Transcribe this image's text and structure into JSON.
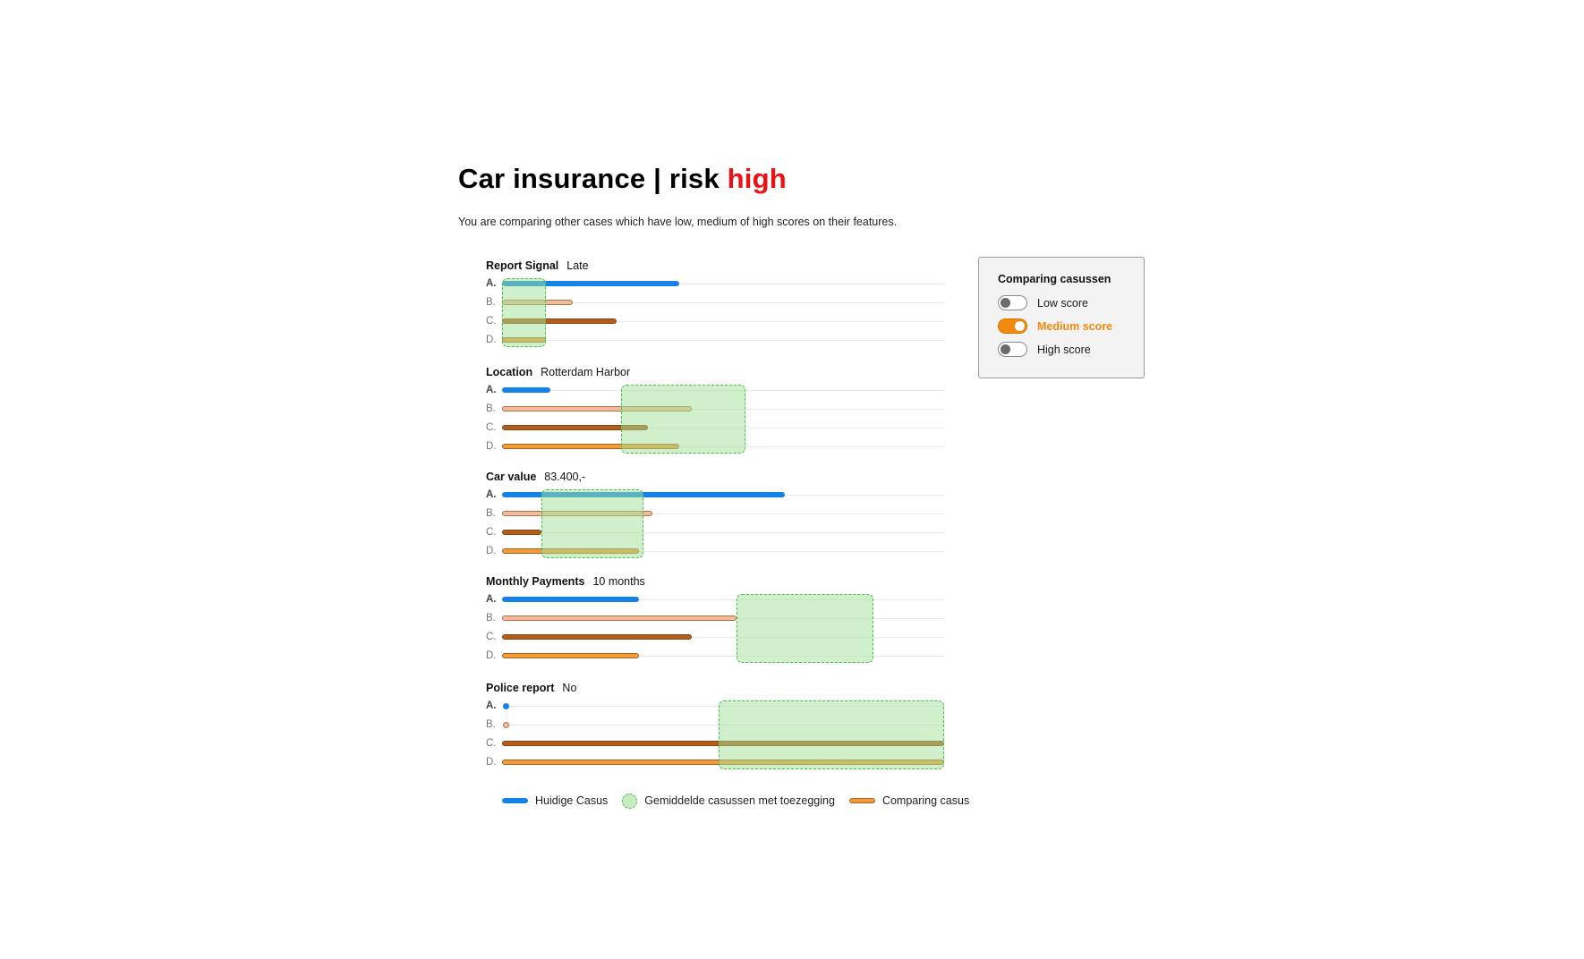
{
  "header": {
    "title_prefix": "Car insurance | risk",
    "risk_level": "high",
    "risk_color": "#ee1111",
    "subtitle": "You are comparing other cases which have low, medium of high scores on their features."
  },
  "colors": {
    "current_case": "#1582e7",
    "comparing_light": "#f3bc97",
    "comparing_dark": "#b35d1b",
    "comparing_medium": "#f39a39",
    "average_zone": "#a0e196",
    "toggle_on": "#f38a0e"
  },
  "row_labels": [
    "A.",
    "B.",
    "C.",
    "D."
  ],
  "features": [
    {
      "name": "Report Signal",
      "value": "Late",
      "values": [
        40,
        16,
        26,
        10
      ],
      "avg_range": [
        0,
        10
      ]
    },
    {
      "name": "Location",
      "value": "Rotterdam Harbor",
      "values": [
        11,
        43,
        33,
        40
      ],
      "avg_range": [
        27,
        55
      ]
    },
    {
      "name": "Car value",
      "value": "83.400,-",
      "values": [
        64,
        34,
        9,
        31
      ],
      "avg_range": [
        9,
        32
      ]
    },
    {
      "name": "Monthly Payments",
      "value": "10 months",
      "values": [
        31,
        53,
        43,
        31
      ],
      "avg_range": [
        53,
        84
      ]
    },
    {
      "name": "Police report",
      "value": "No",
      "values": [
        0,
        0,
        100,
        100
      ],
      "avg_range": [
        49,
        100
      ]
    }
  ],
  "legend": {
    "current": "Huidige Casus",
    "average": "Gemiddelde casussen met toezegging",
    "comparing": "Comparing casus"
  },
  "panel": {
    "title": "Comparing casussen",
    "toggles": [
      {
        "label": "Low score",
        "on": false
      },
      {
        "label": "Medium score",
        "on": true
      },
      {
        "label": "High score",
        "on": false
      }
    ]
  }
}
